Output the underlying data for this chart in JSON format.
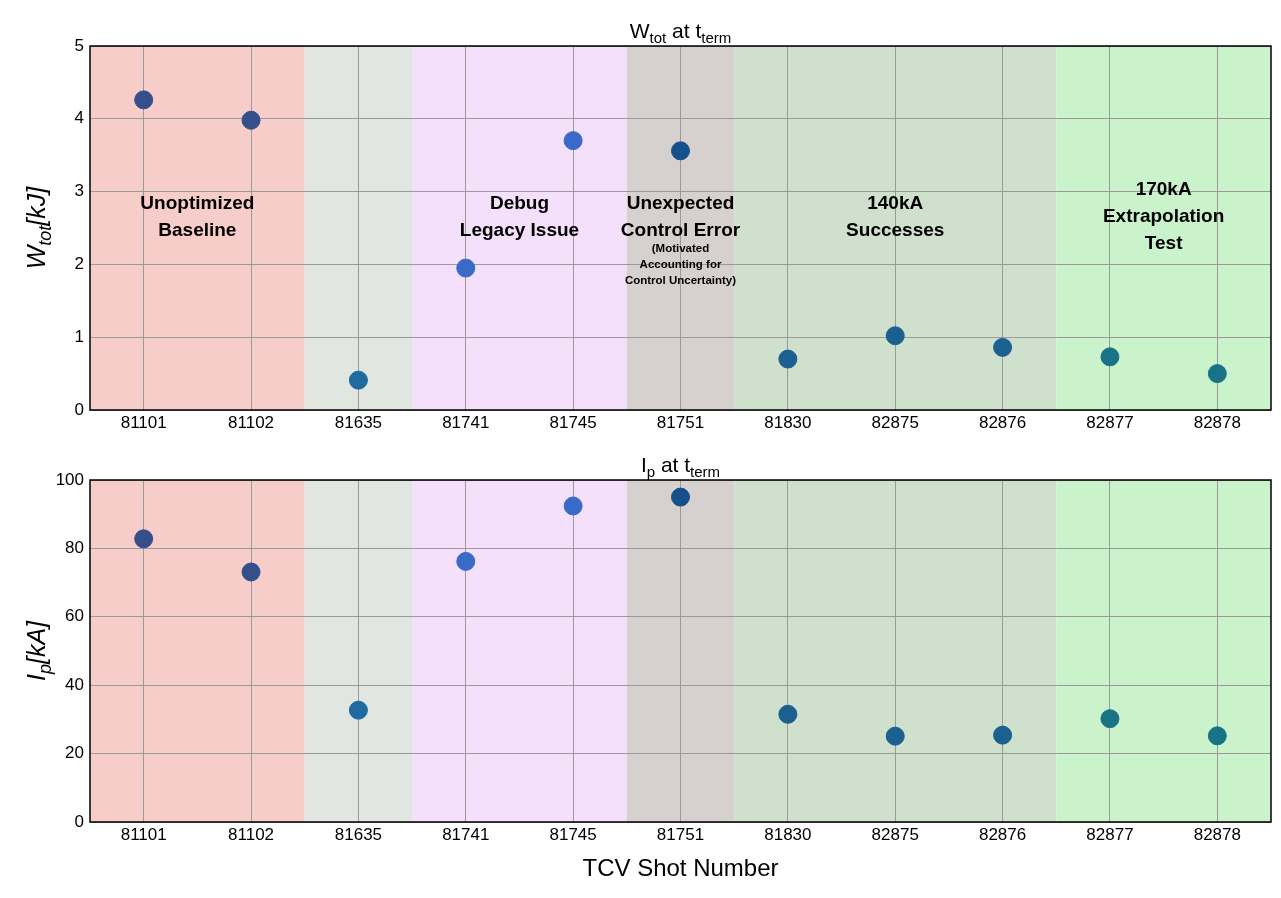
{
  "chart_data": [
    {
      "type": "scatter",
      "title": "W$_{tot}$ at t$_{term}$",
      "ylabel": "W$_{tot}$[kJ]",
      "categories": [
        "81101",
        "81102",
        "81635",
        "81741",
        "81745",
        "81751",
        "81830",
        "82875",
        "82876",
        "82877",
        "82878"
      ],
      "values": [
        4.26,
        3.98,
        0.41,
        1.95,
        3.7,
        3.56,
        0.7,
        1.02,
        0.86,
        0.73,
        0.5
      ],
      "colors": [
        "#344f8a",
        "#34508a",
        "#1f6aa0",
        "#3a6ac8",
        "#3a6ac8",
        "#15508a",
        "#1b6090",
        "#1b6090",
        "#1b6090",
        "#197386",
        "#197386"
      ],
      "ylim": [
        0,
        5
      ],
      "yticks": [
        0,
        1,
        2,
        3,
        4,
        5
      ],
      "bands": [
        {
          "axis": "x",
          "from": "81101",
          "to": "81102",
          "label": "Unoptimized\nBaseline",
          "color": "#f7cdca"
        },
        {
          "axis": "x",
          "from": "81635",
          "to": "81635",
          "color": "#e1e6e0"
        },
        {
          "axis": "x",
          "from": "81741",
          "to": "81745",
          "label": "Debug\nLegacy Issue",
          "color": "#f4e0fb"
        },
        {
          "axis": "x",
          "from": "81751",
          "to": "81751",
          "label": "Unexpected\nControl Error",
          "color": "#d6d1ce"
        },
        {
          "axis": "x",
          "from": "81830",
          "to": "82876",
          "label": "140kA\nSuccesses",
          "color": "#cfe0cc"
        },
        {
          "axis": "x",
          "from": "82877",
          "to": "82878",
          "label": "170kA\nExtrapolation\nTest",
          "color": "#cbf3cb"
        }
      ],
      "annotations": [
        "(Motivated\nAccounting for\nControl Uncertainty)"
      ],
      "marker": "circle",
      "grid": true
    },
    {
      "type": "scatter",
      "title": "I$_{p}$ at t$_{term}$",
      "ylabel": "I$_{p}$[kA]",
      "xlabel": "TCV Shot Number",
      "categories": [
        "81101",
        "81102",
        "81635",
        "81741",
        "81745",
        "81751",
        "81830",
        "82875",
        "82876",
        "82877",
        "82878"
      ],
      "values": [
        82.8,
        73.1,
        32.7,
        76.2,
        92.4,
        95.0,
        31.5,
        25.1,
        25.4,
        30.2,
        25.2
      ],
      "colors": [
        "#344f8a",
        "#34508a",
        "#1f6aa0",
        "#3a6ac8",
        "#3a6ac8",
        "#15508a",
        "#1b6090",
        "#1b6090",
        "#1b6090",
        "#197386",
        "#197386"
      ],
      "ylim": [
        0,
        100
      ],
      "yticks": [
        0,
        20,
        40,
        60,
        80,
        100
      ],
      "bands": [
        {
          "axis": "x",
          "from": "81101",
          "to": "81102",
          "color": "#f7cdca"
        },
        {
          "axis": "x",
          "from": "81635",
          "to": "81635",
          "color": "#e1e6e0"
        },
        {
          "axis": "x",
          "from": "81741",
          "to": "81745",
          "color": "#f4e0fb"
        },
        {
          "axis": "x",
          "from": "81751",
          "to": "81751",
          "color": "#d6d1ce"
        },
        {
          "axis": "x",
          "from": "81830",
          "to": "82876",
          "color": "#cfe0cc"
        },
        {
          "axis": "x",
          "from": "82877",
          "to": "82878",
          "color": "#cbf3cb"
        }
      ],
      "marker": "circle",
      "grid": true
    }
  ]
}
